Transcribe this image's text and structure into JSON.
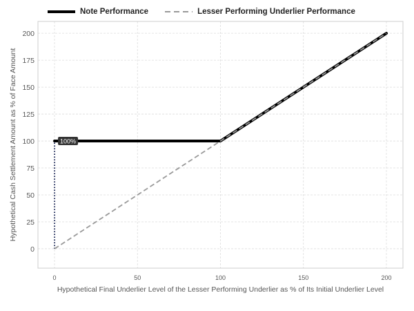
{
  "chart_data": {
    "type": "line",
    "xlabel": "Hypothetical Final Underlier Level of the Lesser Performing Underlier as % of Its Initial Underlier Level",
    "ylabel": "Hypothetical Cash Settlement Amount as % of Face Amount",
    "xlim": [
      -10,
      210
    ],
    "ylim": [
      -18,
      211
    ],
    "xticks": [
      0,
      50,
      100,
      150,
      200
    ],
    "yticks": [
      0,
      25,
      50,
      75,
      100,
      125,
      150,
      175,
      200
    ],
    "xtick_labels": [
      "0",
      "50",
      "100",
      "150",
      "200"
    ],
    "ytick_labels": [
      "0",
      "25",
      "50",
      "75",
      "100",
      "125",
      "150",
      "175",
      "200"
    ],
    "grid": true,
    "legend_position": "top-left",
    "series": [
      {
        "name": "Note Performance",
        "style": "solid",
        "color": "#000000",
        "x": [
          0,
          100,
          200
        ],
        "y": [
          100,
          100,
          200
        ]
      },
      {
        "name": "Lesser Performing Underlier Performance",
        "style": "dashed",
        "color": "#999999",
        "x": [
          0,
          200
        ],
        "y": [
          0,
          200
        ]
      }
    ],
    "reference_lines": [
      {
        "style": "dotted",
        "color": "#1f2a5a",
        "x": [
          0,
          0
        ],
        "y": [
          0,
          100
        ]
      }
    ],
    "annotations": [
      {
        "text": "100%",
        "x": 0,
        "y": 100
      }
    ]
  },
  "colors": {
    "note": "#000000",
    "underlier": "#999999",
    "dotted": "#1f2a5a",
    "grid": "#dddddd",
    "label_bg": "#333333"
  }
}
